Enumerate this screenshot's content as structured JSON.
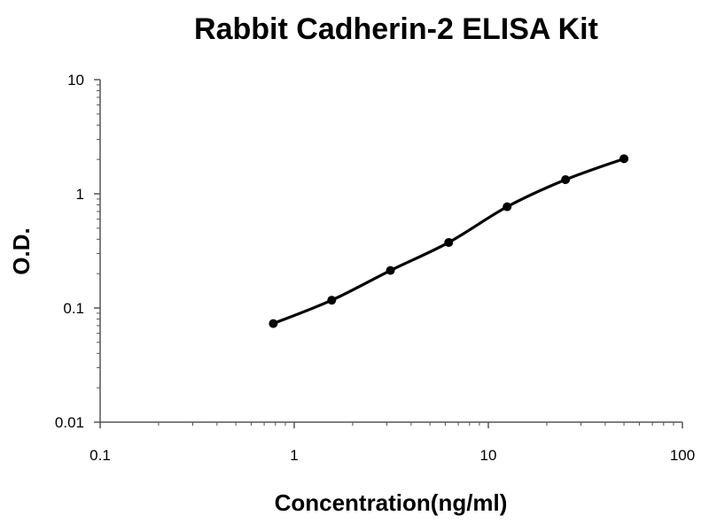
{
  "chart_data": {
    "type": "line",
    "title": "Rabbit Cadherin-2 ELISA Kit",
    "xlabel": "Concentration(ng/ml)",
    "ylabel": "O.D.",
    "xscale": "log",
    "yscale": "log",
    "xlim": [
      0.1,
      100
    ],
    "ylim": [
      0.01,
      10
    ],
    "xticks": [
      "0.1",
      "1",
      "10",
      "100"
    ],
    "yticks": [
      "0.01",
      "0.1",
      "1",
      "10"
    ],
    "grid": false,
    "legend": "none",
    "series": [
      {
        "x": [
          0.78,
          1.56,
          3.13,
          6.25,
          12.5,
          25,
          50
        ],
        "y": [
          0.073,
          0.117,
          0.213,
          0.375,
          0.77,
          1.33,
          2.03
        ]
      }
    ],
    "colors": {
      "line": "#000000",
      "points": "#000000",
      "axis": "#555555"
    }
  }
}
